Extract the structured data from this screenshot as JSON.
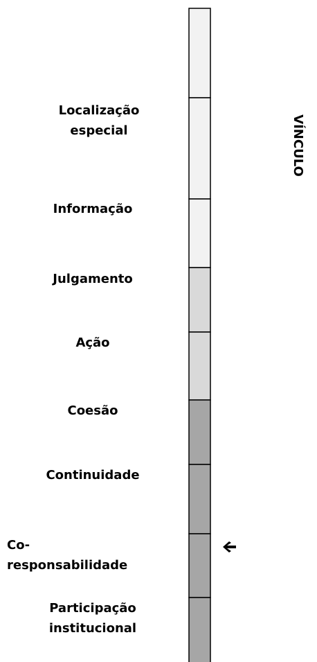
{
  "side_label": "VÍNCULO",
  "labels": [
    {
      "lines": [
        "Localização",
        "especial"
      ]
    },
    {
      "lines": [
        "Informação"
      ]
    },
    {
      "lines": [
        "Julgamento"
      ]
    },
    {
      "lines": [
        "Ação"
      ]
    },
    {
      "lines": [
        "Coesão"
      ]
    },
    {
      "lines": [
        "Continuidade"
      ]
    },
    {
      "lines": [
        "Co-",
        "responsabilidade"
      ]
    },
    {
      "lines": [
        "Participação",
        "institucional"
      ]
    }
  ]
}
